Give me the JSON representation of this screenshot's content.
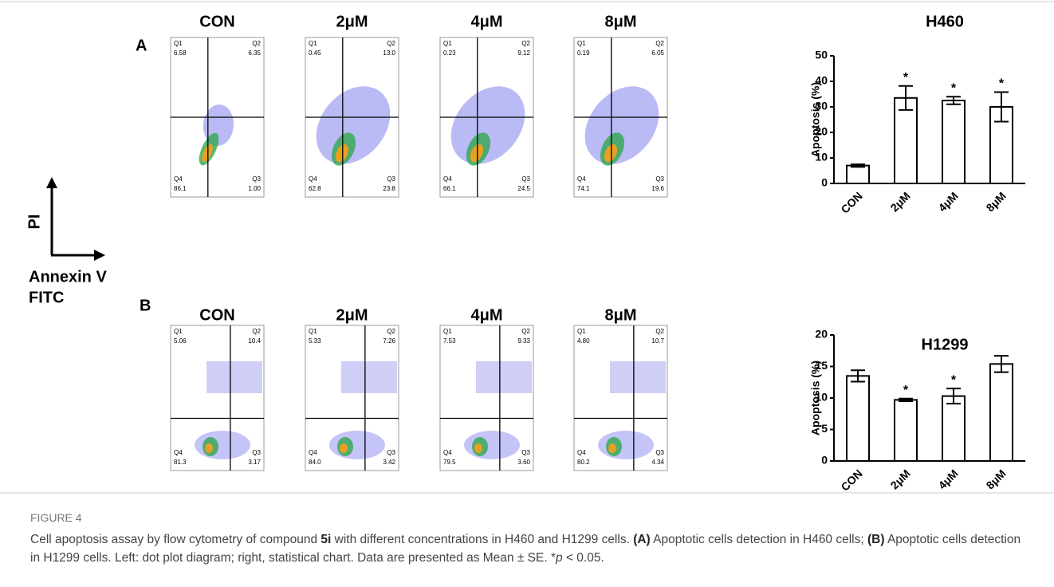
{
  "panels": [
    {
      "label": "A",
      "plots": [
        {
          "title": "CON",
          "quadrants": [
            {
              "name": "Q1",
              "value": "6.58"
            },
            {
              "name": "Q2",
              "value": "6.35"
            },
            {
              "name": "Q3",
              "value": "1.00"
            },
            {
              "name": "Q4",
              "value": "86.1"
            }
          ]
        },
        {
          "title": "2μM",
          "quadrants": [
            {
              "name": "Q1",
              "value": "0.45"
            },
            {
              "name": "Q2",
              "value": "13.0"
            },
            {
              "name": "Q3",
              "value": "23.8"
            },
            {
              "name": "Q4",
              "value": "62.8"
            }
          ]
        },
        {
          "title": "4μM",
          "quadrants": [
            {
              "name": "Q1",
              "value": "0.23"
            },
            {
              "name": "Q2",
              "value": "9.12"
            },
            {
              "name": "Q3",
              "value": "24.5"
            },
            {
              "name": "Q4",
              "value": "66.1"
            }
          ]
        },
        {
          "title": "8μM",
          "quadrants": [
            {
              "name": "Q1",
              "value": "0.19"
            },
            {
              "name": "Q2",
              "value": "6.05"
            },
            {
              "name": "Q3",
              "value": "19.6"
            },
            {
              "name": "Q4",
              "value": "74.1"
            }
          ]
        }
      ],
      "chart": {
        "type": "bar",
        "title": "H460",
        "y_label": "Apoptosis (%)",
        "categories": [
          "CON",
          "2μM",
          "4μM",
          "8μM"
        ],
        "values": [
          7,
          33.5,
          32.5,
          30
        ],
        "errors": [
          0.5,
          4.7,
          1.5,
          5.8
        ],
        "significance": [
          null,
          "*",
          "*",
          "*"
        ],
        "color": "#ffffff",
        "ylim": [
          0,
          50
        ],
        "yticks": [
          0,
          10,
          20,
          30,
          40,
          50
        ]
      }
    },
    {
      "label": "B",
      "plots": [
        {
          "title": "CON",
          "quadrants": [
            {
              "name": "Q1",
              "value": "5.06"
            },
            {
              "name": "Q2",
              "value": "10.4"
            },
            {
              "name": "Q3",
              "value": "3.17"
            },
            {
              "name": "Q4",
              "value": "81.3"
            }
          ]
        },
        {
          "title": "2μM",
          "quadrants": [
            {
              "name": "Q1",
              "value": "5.33"
            },
            {
              "name": "Q2",
              "value": "7.26"
            },
            {
              "name": "Q3",
              "value": "3.42"
            },
            {
              "name": "Q4",
              "value": "84.0"
            }
          ]
        },
        {
          "title": "4μM",
          "quadrants": [
            {
              "name": "Q1",
              "value": "7.53"
            },
            {
              "name": "Q2",
              "value": "9.33"
            },
            {
              "name": "Q3",
              "value": "3.60"
            },
            {
              "name": "Q4",
              "value": "79.5"
            }
          ]
        },
        {
          "title": "8μM",
          "quadrants": [
            {
              "name": "Q1",
              "value": "4.80"
            },
            {
              "name": "Q2",
              "value": "10.7"
            },
            {
              "name": "Q3",
              "value": "4.34"
            },
            {
              "name": "Q4",
              "value": "80.2"
            }
          ]
        }
      ],
      "chart": {
        "type": "bar",
        "title": "H1299",
        "y_label": "Apoptosis (%)",
        "categories": [
          "CON",
          "2μM",
          "4μM",
          "8μM"
        ],
        "values": [
          13.5,
          9.7,
          10.3,
          15.4
        ],
        "errors": [
          0.9,
          0.2,
          1.2,
          1.3
        ],
        "significance": [
          null,
          "*",
          "*",
          null
        ],
        "color": "#ffffff",
        "ylim": [
          0,
          20
        ],
        "yticks": [
          0,
          5,
          10,
          15,
          20
        ]
      }
    }
  ],
  "axis_key": {
    "y": "PI",
    "x_line1": "Annexin V",
    "x_line2": "FITC"
  },
  "caption": {
    "label": "FIGURE 4",
    "parts": [
      "Cell apoptosis assay by flow cytometry of compound ",
      "5i",
      " with different concentrations in H460 and H1299 cells. ",
      "(A)",
      " Apoptotic cells detection in H460 cells; ",
      "(B)",
      " Apoptotic cells detection in H1299 cells. Left: dot plot diagram; right, statistical chart. Data are presented as Mean ± SE. *",
      "p",
      " < 0.05."
    ]
  }
}
